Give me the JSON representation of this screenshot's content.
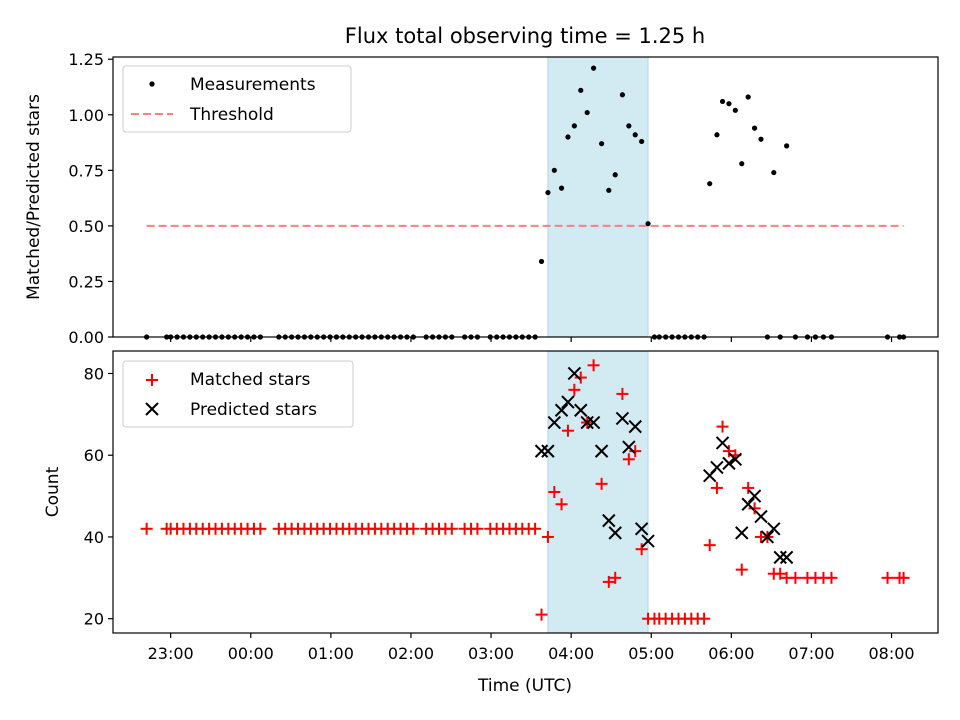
{
  "chart_data": {
    "type": "scatter",
    "title": "Flux total observing time = 1.25 h",
    "xlabel": "Time (UTC)",
    "x_ticks": [
      {
        "t": 23.0,
        "label": "23:00"
      },
      {
        "t": 24.0,
        "label": "00:00"
      },
      {
        "t": 25.0,
        "label": "01:00"
      },
      {
        "t": 26.0,
        "label": "02:00"
      },
      {
        "t": 27.0,
        "label": "03:00"
      },
      {
        "t": 28.0,
        "label": "04:00"
      },
      {
        "t": 29.0,
        "label": "05:00"
      },
      {
        "t": 30.0,
        "label": "06:00"
      },
      {
        "t": 31.0,
        "label": "07:00"
      },
      {
        "t": 32.0,
        "label": "08:00"
      }
    ],
    "xlim": [
      22.28,
      32.58
    ],
    "shaded_interval": {
      "start": 27.71,
      "end": 28.96,
      "color": "#add8e6"
    },
    "top": {
      "ylabel": "Matched/Predicted stars",
      "ylim": [
        0,
        1.26
      ],
      "yticks": [
        "0.00",
        "0.25",
        "0.50",
        "0.75",
        "1.00",
        "1.25"
      ],
      "legend_position": "upper-left",
      "threshold": {
        "name": "Threshold",
        "value": 0.5,
        "x_start": 22.7,
        "x_end": 32.15,
        "color": "#ff7f7f"
      },
      "measurements": {
        "name": "Measurements",
        "color": "#000000",
        "x": [
          22.7,
          22.95,
          23.0,
          23.08,
          23.16,
          23.24,
          23.32,
          23.4,
          23.48,
          23.56,
          23.64,
          23.72,
          23.8,
          23.88,
          23.96,
          24.04,
          24.12,
          24.35,
          24.43,
          24.51,
          24.59,
          24.67,
          24.75,
          24.83,
          24.91,
          24.99,
          25.07,
          25.15,
          25.23,
          25.31,
          25.39,
          25.47,
          25.55,
          25.63,
          25.71,
          25.79,
          25.87,
          25.95,
          26.03,
          26.19,
          26.27,
          26.35,
          26.43,
          26.51,
          26.67,
          26.75,
          26.83,
          26.99,
          27.07,
          27.15,
          27.23,
          27.31,
          27.39,
          27.47,
          27.55,
          27.63,
          27.71,
          27.79,
          27.88,
          27.96,
          28.04,
          28.12,
          28.2,
          28.28,
          28.38,
          28.47,
          28.55,
          28.64,
          28.72,
          28.8,
          28.88,
          28.96,
          29.04,
          29.1,
          29.18,
          29.26,
          29.34,
          29.42,
          29.5,
          29.58,
          29.66,
          29.73,
          29.82,
          29.89,
          29.97,
          30.05,
          30.13,
          30.21,
          30.29,
          30.37,
          30.45,
          30.53,
          30.61,
          30.69,
          30.8,
          30.95,
          31.05,
          31.15,
          31.25,
          31.95,
          32.1,
          32.15
        ],
        "y": [
          0,
          0,
          0,
          0,
          0,
          0,
          0,
          0,
          0,
          0,
          0,
          0,
          0,
          0,
          0,
          0,
          0,
          0,
          0,
          0,
          0,
          0,
          0,
          0,
          0,
          0,
          0,
          0,
          0,
          0,
          0,
          0,
          0,
          0,
          0,
          0,
          0,
          0,
          0,
          0,
          0,
          0,
          0,
          0,
          0,
          0,
          0,
          0,
          0,
          0,
          0,
          0,
          0,
          0,
          0,
          0.34,
          0.65,
          0.75,
          0.67,
          0.9,
          0.95,
          1.11,
          1.01,
          1.21,
          0.87,
          0.66,
          0.73,
          1.09,
          0.95,
          0.91,
          0.88,
          0.51,
          0,
          0,
          0,
          0,
          0,
          0,
          0,
          0,
          0,
          0.69,
          0.91,
          1.06,
          1.05,
          1.02,
          0.78,
          1.08,
          0.94,
          0.89,
          0,
          0.74,
          0,
          0.86,
          0,
          0,
          0,
          0,
          0,
          0,
          0,
          0
        ]
      }
    },
    "bottom": {
      "ylabel": "Count",
      "ylim": [
        16.5,
        85.5
      ],
      "yticks": [
        "20",
        "40",
        "60",
        "80"
      ],
      "legend_position": "upper-left",
      "matched": {
        "name": "Matched stars",
        "color": "#ff0000",
        "x": [
          22.7,
          22.95,
          23.0,
          23.08,
          23.16,
          23.24,
          23.32,
          23.4,
          23.48,
          23.56,
          23.64,
          23.72,
          23.8,
          23.88,
          23.96,
          24.04,
          24.12,
          24.35,
          24.43,
          24.51,
          24.59,
          24.67,
          24.75,
          24.83,
          24.91,
          24.99,
          25.07,
          25.15,
          25.23,
          25.31,
          25.39,
          25.47,
          25.55,
          25.63,
          25.71,
          25.79,
          25.87,
          25.95,
          26.03,
          26.19,
          26.27,
          26.35,
          26.43,
          26.51,
          26.67,
          26.75,
          26.83,
          26.99,
          27.07,
          27.15,
          27.23,
          27.31,
          27.39,
          27.47,
          27.55,
          27.63,
          27.71,
          27.79,
          27.88,
          27.96,
          28.04,
          28.12,
          28.2,
          28.28,
          28.38,
          28.47,
          28.55,
          28.64,
          28.72,
          28.8,
          28.88,
          28.96,
          29.04,
          29.1,
          29.18,
          29.26,
          29.34,
          29.42,
          29.5,
          29.58,
          29.66,
          29.73,
          29.82,
          29.89,
          29.97,
          30.05,
          30.13,
          30.21,
          30.29,
          30.37,
          30.45,
          30.53,
          30.61,
          30.69,
          30.8,
          30.95,
          31.05,
          31.15,
          31.25,
          31.95,
          32.1,
          32.15
        ],
        "y": [
          42,
          42,
          42,
          42,
          42,
          42,
          42,
          42,
          42,
          42,
          42,
          42,
          42,
          42,
          42,
          42,
          42,
          42,
          42,
          42,
          42,
          42,
          42,
          42,
          42,
          42,
          42,
          42,
          42,
          42,
          42,
          42,
          42,
          42,
          42,
          42,
          42,
          42,
          42,
          42,
          42,
          42,
          42,
          42,
          42,
          42,
          42,
          42,
          42,
          42,
          42,
          42,
          42,
          42,
          42,
          21,
          40,
          51,
          48,
          66,
          76,
          79,
          68,
          82,
          53,
          29,
          30,
          75,
          59,
          61,
          37,
          20,
          20,
          20,
          20,
          20,
          20,
          20,
          20,
          20,
          20,
          38,
          52,
          67,
          61,
          60,
          32,
          52,
          47,
          40,
          40,
          31,
          31,
          30,
          30,
          30,
          30,
          30,
          30,
          30,
          30,
          30
        ]
      },
      "predicted": {
        "name": "Predicted stars",
        "color": "#000000",
        "x": [
          27.63,
          27.71,
          27.79,
          27.88,
          27.96,
          28.04,
          28.12,
          28.2,
          28.28,
          28.38,
          28.47,
          28.55,
          28.64,
          28.72,
          28.8,
          28.88,
          28.96,
          29.73,
          29.82,
          29.89,
          29.97,
          30.05,
          30.13,
          30.21,
          30.29,
          30.37,
          30.45,
          30.53,
          30.61,
          30.69
        ],
        "y": [
          61,
          61,
          68,
          71,
          73,
          80,
          71,
          68,
          68,
          61,
          44,
          41,
          69,
          62,
          67,
          42,
          39,
          55,
          57,
          63,
          58,
          59,
          41,
          48,
          50,
          45,
          40,
          42,
          35,
          35
        ]
      }
    }
  }
}
